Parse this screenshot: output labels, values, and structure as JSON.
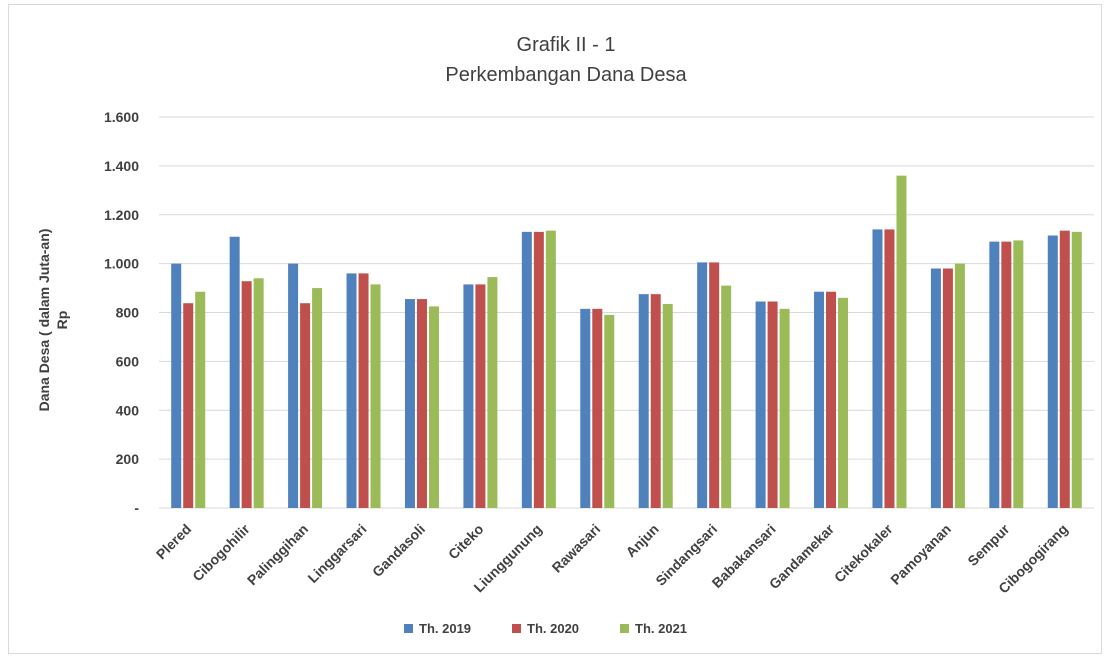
{
  "chart_data": {
    "type": "bar",
    "title": "Grafik  II - 1",
    "subtitle": "Perkembangan Dana Desa",
    "ylabel_line1": "Dana Desa ( dalam Juta-an)",
    "ylabel_line2": "Rp",
    "xlabel": "",
    "ylim": [
      0,
      1600
    ],
    "yticks": [
      {
        "value": 0,
        "label": "-"
      },
      {
        "value": 200,
        "label": "200"
      },
      {
        "value": 400,
        "label": "400"
      },
      {
        "value": 600,
        "label": "600"
      },
      {
        "value": 800,
        "label": "800"
      },
      {
        "value": 1000,
        "label": "1.000"
      },
      {
        "value": 1200,
        "label": "1.200"
      },
      {
        "value": 1400,
        "label": "1.400"
      },
      {
        "value": 1600,
        "label": "1.600"
      }
    ],
    "grid": true,
    "legend_position": "bottom",
    "categories": [
      "Plered",
      "Cibogohilir",
      "Palinggihan",
      "Linggarsari",
      "Gandasoli",
      "Citeko",
      "Liunggunung",
      "Rawasari",
      "Anjun",
      "Sindangsari",
      "Babakansari",
      "Gandamekar",
      "Citekokaler",
      "Pamoyanan",
      "Sempur",
      "Cibogogirang"
    ],
    "series": [
      {
        "name": "Th. 2019",
        "color": "#4f81bd",
        "values": [
          1000,
          1110,
          1000,
          960,
          855,
          915,
          1130,
          815,
          875,
          1005,
          845,
          885,
          1140,
          980,
          1090,
          1115
        ]
      },
      {
        "name": "Th. 2020",
        "color": "#c0504d",
        "values": [
          838,
          928,
          838,
          960,
          855,
          915,
          1130,
          815,
          875,
          1005,
          845,
          885,
          1140,
          980,
          1090,
          1135
        ]
      },
      {
        "name": "Th. 2021",
        "color": "#9bbb59",
        "values": [
          885,
          940,
          900,
          915,
          825,
          945,
          1135,
          790,
          835,
          910,
          815,
          860,
          1360,
          1000,
          1095,
          1130
        ]
      }
    ]
  }
}
